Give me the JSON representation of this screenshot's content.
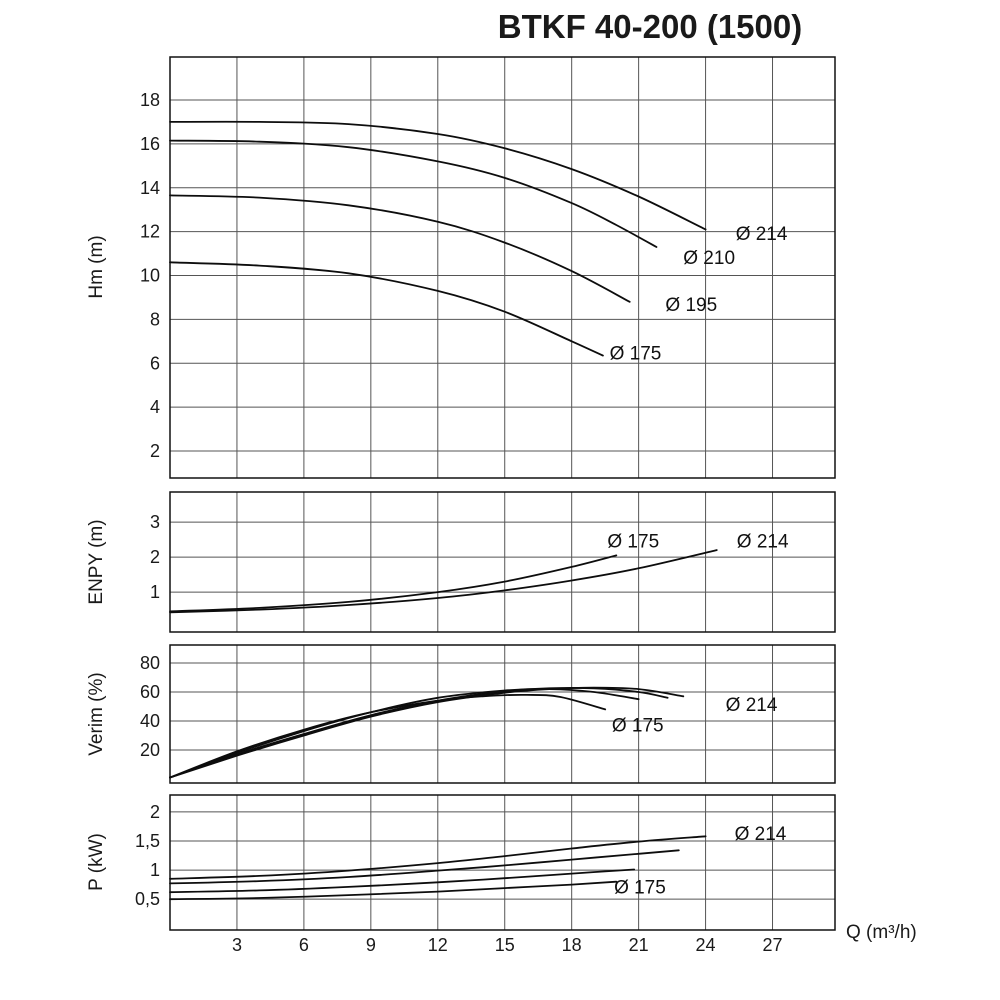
{
  "title": "BTKF 40-200 (1500)",
  "x_axis": {
    "label": "Q (m³/h)",
    "min": 0,
    "max": 29.8,
    "ticks": [
      3,
      6,
      9,
      12,
      15,
      18,
      21,
      24,
      27
    ]
  },
  "chart_data": [
    {
      "id": "hm",
      "type": "line",
      "ylabel": "Hm (m)",
      "ymin": 0.77,
      "ymax": 19.96,
      "yticks": [
        {
          "v": 18,
          "label": "18"
        },
        {
          "v": 16,
          "label": "16"
        },
        {
          "v": 14,
          "label": "14"
        },
        {
          "v": 12,
          "label": "12"
        },
        {
          "v": 10,
          "label": "10"
        },
        {
          "v": 8,
          "label": "8"
        },
        {
          "v": 6,
          "label": "6"
        },
        {
          "v": 4,
          "label": "4"
        },
        {
          "v": 2,
          "label": "2"
        }
      ],
      "series": [
        {
          "name": "Ø 214",
          "points": [
            [
              0,
              17.0
            ],
            [
              4,
              17.0
            ],
            [
              8,
              16.9
            ],
            [
              12,
              16.45
            ],
            [
              15,
              15.8
            ],
            [
              18,
              14.85
            ],
            [
              21,
              13.6
            ],
            [
              24,
              12.1
            ]
          ],
          "label_at": [
            25.35,
            11.9
          ]
        },
        {
          "name": "Ø 210",
          "points": [
            [
              0,
              16.15
            ],
            [
              4,
              16.1
            ],
            [
              8,
              15.85
            ],
            [
              12,
              15.2
            ],
            [
              15,
              14.45
            ],
            [
              18,
              13.3
            ],
            [
              20,
              12.3
            ],
            [
              21.8,
              11.3
            ]
          ],
          "label_at": [
            23.0,
            10.8
          ]
        },
        {
          "name": "Ø 195",
          "points": [
            [
              0,
              13.65
            ],
            [
              4,
              13.55
            ],
            [
              8,
              13.2
            ],
            [
              12,
              12.45
            ],
            [
              15,
              11.5
            ],
            [
              18,
              10.2
            ],
            [
              20.6,
              8.8
            ]
          ],
          "label_at": [
            22.2,
            8.65
          ]
        },
        {
          "name": "Ø 175",
          "points": [
            [
              0,
              10.6
            ],
            [
              4,
              10.45
            ],
            [
              8,
              10.1
            ],
            [
              12,
              9.3
            ],
            [
              15,
              8.35
            ],
            [
              18,
              7.0
            ],
            [
              19.4,
              6.35
            ]
          ],
          "label_at": [
            19.7,
            6.45
          ]
        }
      ]
    },
    {
      "id": "enpy",
      "type": "line",
      "ylabel": "ENPY (m)",
      "ymin": -0.14,
      "ymax": 3.86,
      "yticks": [
        {
          "v": 3,
          "label": "3"
        },
        {
          "v": 2,
          "label": "2"
        },
        {
          "v": 1,
          "label": "1"
        }
      ],
      "series": [
        {
          "name": "Ø 175",
          "points": [
            [
              0,
              0.45
            ],
            [
              4,
              0.55
            ],
            [
              8,
              0.72
            ],
            [
              12,
              1.0
            ],
            [
              15,
              1.3
            ],
            [
              18,
              1.72
            ],
            [
              20,
              2.05
            ]
          ],
          "label_at": [
            19.6,
            2.45
          ]
        },
        {
          "name": "Ø 214",
          "points": [
            [
              0,
              0.42
            ],
            [
              4,
              0.5
            ],
            [
              8,
              0.63
            ],
            [
              12,
              0.83
            ],
            [
              15,
              1.05
            ],
            [
              18,
              1.33
            ],
            [
              21,
              1.68
            ],
            [
              24.5,
              2.2
            ]
          ],
          "label_at": [
            25.4,
            2.45
          ]
        }
      ]
    },
    {
      "id": "verim",
      "type": "line",
      "ylabel": "Verim (%)",
      "ymin": -2.8,
      "ymax": 92.4,
      "yticks": [
        {
          "v": 80,
          "label": "80"
        },
        {
          "v": 60,
          "label": "60"
        },
        {
          "v": 40,
          "label": "40"
        },
        {
          "v": 20,
          "label": "20"
        }
      ],
      "series": [
        {
          "name": "Ø 175",
          "points": [
            [
              0,
              1
            ],
            [
              3,
              19
            ],
            [
              6,
              34
            ],
            [
              9,
              46
            ],
            [
              12,
              54
            ],
            [
              14,
              57
            ],
            [
              16,
              58
            ],
            [
              17.5,
              56.5
            ],
            [
              19.5,
              48
            ]
          ],
          "label_at": [
            19.8,
            37
          ]
        },
        {
          "name": "Ø 195",
          "points": [
            [
              0,
              1
            ],
            [
              3,
              18
            ],
            [
              6,
              33
            ],
            [
              9,
              46
            ],
            [
              12,
              56
            ],
            [
              15,
              61
            ],
            [
              17,
              62
            ],
            [
              19,
              60
            ],
            [
              21,
              55
            ]
          ],
          "label_at": null
        },
        {
          "name": "Ø 210",
          "points": [
            [
              0,
              1
            ],
            [
              3,
              17
            ],
            [
              6,
              31
            ],
            [
              9,
              44
            ],
            [
              12,
              54
            ],
            [
              15,
              60.5
            ],
            [
              17,
              62.5
            ],
            [
              19,
              62.5
            ],
            [
              21,
              60
            ],
            [
              22.3,
              56
            ]
          ],
          "label_at": null
        },
        {
          "name": "Ø 214",
          "points": [
            [
              0,
              1
            ],
            [
              3,
              16
            ],
            [
              6,
              30
            ],
            [
              9,
              43
            ],
            [
              12,
              53
            ],
            [
              15,
              59.5
            ],
            [
              17,
              62
            ],
            [
              19,
              63
            ],
            [
              21,
              62
            ],
            [
              23,
              57
            ]
          ],
          "label_at": [
            24.9,
            51
          ]
        }
      ]
    },
    {
      "id": "p",
      "type": "line",
      "ylabel": "P (kW)",
      "ymin": -0.03,
      "ymax": 2.29,
      "yticks": [
        {
          "v": 2,
          "label": "2"
        },
        {
          "v": 1.5,
          "label": "1,5"
        },
        {
          "v": 1,
          "label": "1"
        },
        {
          "v": 0.5,
          "label": "0,5"
        }
      ],
      "series": [
        {
          "name": "Ø 214",
          "points": [
            [
              0,
              0.85
            ],
            [
              4,
              0.9
            ],
            [
              8,
              0.99
            ],
            [
              12,
              1.12
            ],
            [
              15,
              1.24
            ],
            [
              18,
              1.37
            ],
            [
              21,
              1.49
            ],
            [
              24,
              1.58
            ]
          ],
          "label_at": [
            25.3,
            1.62
          ]
        },
        {
          "name": "Ø 210",
          "points": [
            [
              0,
              0.77
            ],
            [
              4,
              0.81
            ],
            [
              8,
              0.88
            ],
            [
              12,
              0.99
            ],
            [
              15,
              1.08
            ],
            [
              18,
              1.18
            ],
            [
              21,
              1.28
            ],
            [
              22.8,
              1.34
            ]
          ],
          "label_at": null
        },
        {
          "name": "Ø 195",
          "points": [
            [
              0,
              0.62
            ],
            [
              4,
              0.65
            ],
            [
              8,
              0.71
            ],
            [
              12,
              0.79
            ],
            [
              15,
              0.86
            ],
            [
              18,
              0.94
            ],
            [
              20.8,
              1.01
            ]
          ],
          "label_at": null
        },
        {
          "name": "Ø 175",
          "points": [
            [
              0,
              0.5
            ],
            [
              4,
              0.52
            ],
            [
              8,
              0.57
            ],
            [
              12,
              0.63
            ],
            [
              15,
              0.69
            ],
            [
              18,
              0.75
            ],
            [
              20,
              0.8
            ]
          ],
          "label_at": [
            19.9,
            0.7
          ]
        }
      ]
    }
  ]
}
